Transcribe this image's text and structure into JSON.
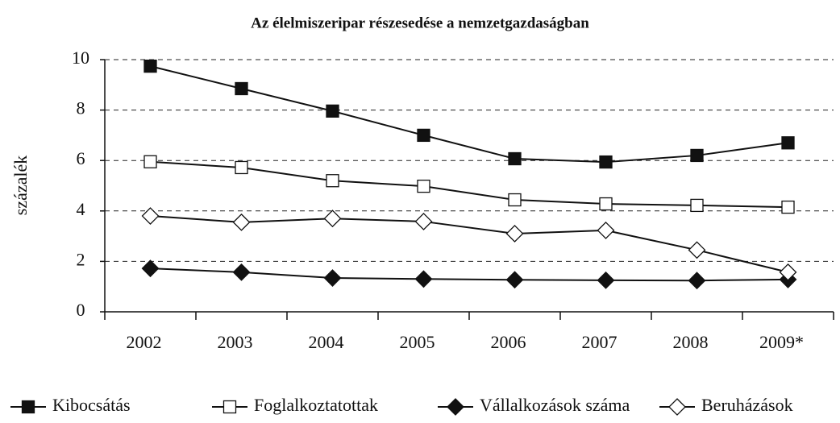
{
  "chart_data": {
    "type": "line",
    "title": "Az élelmiszeripar részesedése a nemzetgazdaságban",
    "y_label": "százalék",
    "categories": [
      "2002",
      "2003",
      "2004",
      "2005",
      "2006",
      "2007",
      "2008",
      "2009*"
    ],
    "series": [
      {
        "name": "Kibocsátás",
        "color": "#111111",
        "marker": "square",
        "filled": true,
        "values": [
          9.74,
          8.85,
          7.96,
          7.0,
          6.07,
          5.94,
          6.2,
          6.7
        ]
      },
      {
        "name": "Foglalkoztatottak",
        "color": "#111111",
        "marker": "square",
        "filled": false,
        "values": [
          5.95,
          5.72,
          5.2,
          4.98,
          4.44,
          4.28,
          4.22,
          4.15
        ]
      },
      {
        "name": "Vállalkozások száma",
        "color": "#111111",
        "marker": "diamond",
        "filled": true,
        "values": [
          1.72,
          1.57,
          1.34,
          1.3,
          1.27,
          1.25,
          1.24,
          1.28
        ]
      },
      {
        "name": "Beruházások",
        "color": "#111111",
        "marker": "diamond",
        "filled": false,
        "values": [
          3.8,
          3.55,
          3.7,
          3.58,
          3.1,
          3.23,
          2.45,
          1.57
        ]
      }
    ],
    "ylim": [
      0,
      10
    ],
    "yticks": [
      0,
      2,
      4,
      6,
      8,
      10
    ],
    "grid": true,
    "legend": "bottom"
  }
}
